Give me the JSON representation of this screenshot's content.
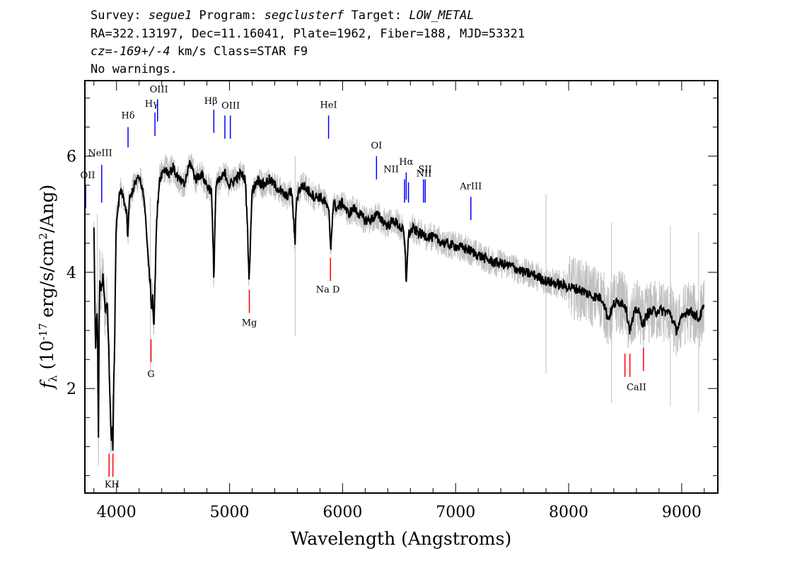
{
  "header": {
    "line1": {
      "survey_label": "Survey: ",
      "survey": "segue1",
      "program_label": " Program: ",
      "program": "segclusterf",
      "target_label": " Target: ",
      "target": "LOW_METAL"
    },
    "line2": "RA=322.13197, Dec=11.16041, Plate=1962, Fiber=188, MJD=53321",
    "line3": {
      "cz": "cz=-169+/-4",
      "rest": " km/s Class=STAR F9"
    },
    "line4": "No warnings."
  },
  "chart_data": {
    "type": "line",
    "xlabel": "Wavelength (Angstroms)",
    "ylabel_parts": {
      "symbol": "f",
      "sub": "λ",
      "pre": " (10",
      "exp": "-17",
      "mid": " erg/s/cm",
      "exp2": "2",
      "post": "/Ang)"
    },
    "xlim": [
      3720,
      9320
    ],
    "ylim": [
      0.2,
      7.3
    ],
    "xticks": [
      4000,
      5000,
      6000,
      7000,
      8000,
      9000
    ],
    "yticks": [
      2,
      4,
      6
    ],
    "colors": {
      "smoothed": "#000000",
      "raw": "#c0c0c0",
      "emission": "#0000ff",
      "absorption": "#ff0000"
    },
    "series": [
      {
        "style": "smoothed",
        "x": [
          3800,
          3815,
          3830,
          3840,
          3850,
          3860,
          3880,
          3900,
          3920,
          3935,
          3945,
          3955,
          3962,
          3968,
          3975,
          3985,
          3995,
          4010,
          4030,
          4060,
          4090,
          4101,
          4110,
          4140,
          4180,
          4210,
          4240,
          4260,
          4280,
          4300,
          4310,
          4320,
          4330,
          4340,
          4350,
          4365,
          4380,
          4400,
          4430,
          4460,
          4500,
          4550,
          4600,
          4650,
          4700,
          4750,
          4800,
          4840,
          4855,
          4861,
          4868,
          4880,
          4920,
          4960,
          5000,
          5050,
          5100,
          5140,
          5160,
          5170,
          5175,
          5185,
          5200,
          5250,
          5300,
          5350,
          5400,
          5450,
          5500,
          5550,
          5570,
          5580,
          5590,
          5610,
          5650,
          5700,
          5750,
          5800,
          5850,
          5880,
          5890,
          5896,
          5905,
          5920,
          5950,
          6000,
          6050,
          6100,
          6150,
          6200,
          6250,
          6300,
          6350,
          6400,
          6450,
          6500,
          6540,
          6555,
          6563,
          6570,
          6585,
          6620,
          6700,
          6800,
          6900,
          7000,
          7100,
          7200,
          7300,
          7400,
          7500,
          7600,
          7700,
          7800,
          7900,
          8000,
          8100,
          8200,
          8300,
          8350,
          8400,
          8450,
          8500,
          8542,
          8600,
          8662,
          8700,
          8800,
          8900,
          8950,
          9000,
          9050,
          9100,
          9150,
          9200
        ],
        "values": [
          4.7,
          2.6,
          3.5,
          1.1,
          4.0,
          3.7,
          3.9,
          3.3,
          3.5,
          2.4,
          1.6,
          0.95,
          1.4,
          1.0,
          2.0,
          3.0,
          4.7,
          5.0,
          5.4,
          5.3,
          5.0,
          4.5,
          5.2,
          5.4,
          5.6,
          5.6,
          5.3,
          4.9,
          4.2,
          3.8,
          3.3,
          3.7,
          3.0,
          3.7,
          4.6,
          5.2,
          5.6,
          5.7,
          5.8,
          5.7,
          5.8,
          5.6,
          5.5,
          5.9,
          5.6,
          5.7,
          5.5,
          5.4,
          4.4,
          3.8,
          4.6,
          5.5,
          5.6,
          5.7,
          5.5,
          5.6,
          5.7,
          5.6,
          4.7,
          4.0,
          3.9,
          4.6,
          5.4,
          5.6,
          5.5,
          5.6,
          5.5,
          5.4,
          5.3,
          5.4,
          4.8,
          4.5,
          5.2,
          5.4,
          5.5,
          5.4,
          5.3,
          5.3,
          5.2,
          5.0,
          4.6,
          4.4,
          4.8,
          5.2,
          5.1,
          5.2,
          5.0,
          5.1,
          5.0,
          4.9,
          4.9,
          5.0,
          4.9,
          4.8,
          4.9,
          4.8,
          4.7,
          4.3,
          3.75,
          4.2,
          4.65,
          4.75,
          4.65,
          4.6,
          4.5,
          4.45,
          4.4,
          4.3,
          4.2,
          4.15,
          4.1,
          4.0,
          3.95,
          3.85,
          3.8,
          3.75,
          3.7,
          3.6,
          3.55,
          3.2,
          3.45,
          3.5,
          3.45,
          3.0,
          3.4,
          3.1,
          3.3,
          3.35,
          3.3,
          3.0,
          3.2,
          3.35,
          3.3,
          3.2,
          3.4
        ]
      }
    ],
    "lines": [
      {
        "label": "OII",
        "x": 3727,
        "kind": "emission",
        "y0": 5.1,
        "y1": 5.5,
        "tx": 3735,
        "ty": 5.62
      },
      {
        "label": "NeIII",
        "x": 3869,
        "kind": "emission",
        "y0": 5.2,
        "y1": 5.85,
        "tx": 3855,
        "ty": 6.0
      },
      {
        "label": "Hδ",
        "x": 4102,
        "kind": "emission",
        "y0": 6.15,
        "y1": 6.5,
        "tx": 4102,
        "ty": 6.65
      },
      {
        "label": "Hγ",
        "x": 4340,
        "kind": "emission",
        "y0": 6.35,
        "y1": 6.75,
        "tx": 4310,
        "ty": 6.85
      },
      {
        "label": "OIII",
        "x": 4363,
        "kind": "emission",
        "y0": 6.6,
        "y1": 6.98,
        "tx": 4375,
        "ty": 7.1
      },
      {
        "label": "Hβ",
        "x": 4861,
        "kind": "emission",
        "y0": 6.4,
        "y1": 6.8,
        "tx": 4835,
        "ty": 6.9
      },
      {
        "label": "OIII",
        "x": 4959,
        "kind": "emission",
        "y0": 6.3,
        "y1": 6.7,
        "tx": 5010,
        "ty": 6.82
      },
      {
        "label": "OIII",
        "x": 5007,
        "kind": "emission",
        "y0": 6.3,
        "y1": 6.7
      },
      {
        "label": "HeI",
        "x": 5876,
        "kind": "emission",
        "y0": 6.3,
        "y1": 6.7,
        "tx": 5876,
        "ty": 6.83
      },
      {
        "label": "OI",
        "x": 6300,
        "kind": "emission",
        "y0": 5.6,
        "y1": 6.0,
        "tx": 6300,
        "ty": 6.13
      },
      {
        "label": "NII",
        "x": 6548,
        "kind": "emission",
        "y0": 5.2,
        "y1": 5.6,
        "tx": 6430,
        "ty": 5.72
      },
      {
        "label": "Hα",
        "x": 6563,
        "kind": "emission",
        "y0": 5.25,
        "y1": 5.72,
        "tx": 6563,
        "ty": 5.85
      },
      {
        "label": "NII",
        "x": 6583,
        "kind": "emission",
        "y0": 5.2,
        "y1": 5.55,
        "tx": 6720,
        "ty": 5.65
      },
      {
        "label": "SII",
        "x": 6716,
        "kind": "emission",
        "y0": 5.2,
        "y1": 5.6,
        "tx": 6730,
        "ty": 5.72
      },
      {
        "label": "SII",
        "x": 6731,
        "kind": "emission",
        "y0": 5.2,
        "y1": 5.6
      },
      {
        "label": "ArIII",
        "x": 7135,
        "kind": "emission",
        "y0": 4.9,
        "y1": 5.3,
        "tx": 7135,
        "ty": 5.43
      },
      {
        "label": "K",
        "x": 3934,
        "kind": "absorption",
        "y0": 0.48,
        "y1": 0.88,
        "tx": 3925,
        "ty": 0.3
      },
      {
        "label": "H",
        "x": 3968,
        "kind": "absorption",
        "y0": 0.48,
        "y1": 0.88,
        "tx": 3990,
        "ty": 0.3
      },
      {
        "label": "G",
        "x": 4305,
        "kind": "absorption",
        "y0": 2.45,
        "y1": 2.85,
        "tx": 4305,
        "ty": 2.2
      },
      {
        "label": "Mg",
        "x": 5175,
        "kind": "absorption",
        "y0": 3.3,
        "y1": 3.7,
        "tx": 5175,
        "ty": 3.08
      },
      {
        "label": "Na D",
        "x": 5893,
        "kind": "absorption",
        "y0": 3.85,
        "y1": 4.25,
        "tx": 5870,
        "ty": 3.65
      },
      {
        "label": "CaII",
        "x": 8498,
        "kind": "absorption",
        "y0": 2.2,
        "y1": 2.6,
        "tx": 8600,
        "ty": 1.97
      },
      {
        "label": "CaII",
        "x": 8542,
        "kind": "absorption",
        "y0": 2.2,
        "y1": 2.6
      },
      {
        "label": "CaII",
        "x": 8662,
        "kind": "absorption",
        "y0": 2.3,
        "y1": 2.7
      }
    ]
  }
}
